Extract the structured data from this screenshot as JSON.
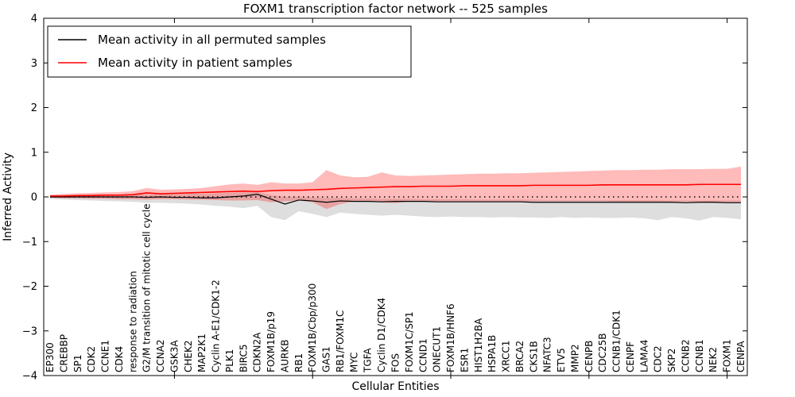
{
  "chart_data": {
    "type": "line",
    "title": "FOXM1 transcription factor network -- 525 samples",
    "xlabel": "Cellular Entities",
    "ylabel": "Inferred Activity",
    "ylim": [
      -4,
      4
    ],
    "yticks": [
      -4,
      -3,
      -2,
      -1,
      0,
      1,
      2,
      3,
      4
    ],
    "xtick_values": [
      10,
      20,
      30,
      40,
      50
    ],
    "grid": false,
    "zero_line": {
      "y": 0,
      "style": "dotted",
      "color": "#000000"
    },
    "legend": {
      "position": "upper-left",
      "border_color": "#000000",
      "background": "#ffffff"
    },
    "colors": {
      "permuted_line": "#000000",
      "patient_line": "#ff0000",
      "permuted_band": "#b0b0b0",
      "patient_band": "#ff0000",
      "axis": "#000000",
      "background": "#ffffff"
    },
    "categories": [
      "EP300",
      "CREBBP",
      "SP1",
      "CDK2",
      "CCNE1",
      "CDK4",
      "response to radiation",
      "G2/M transition of mitotic cell cycle",
      "CCNA2",
      "GSK3A",
      "CHEK2",
      "MAP2K1",
      "Cyclin A-E1/CDK1-2",
      "PLK1",
      "BIRC5",
      "CDKN2A",
      "FOXM1B/p19",
      "AURKB",
      "RB1",
      "FOXM1B/Cbp/p300",
      "GAS1",
      "RB1/FOXM1C",
      "MYC",
      "TGFA",
      "Cyclin D1/CDK4",
      "FOS",
      "FOXM1C/SP1",
      "CCND1",
      "ONECUT1",
      "FOXM1B/HNF6",
      "ESR1",
      "HIST1H2BA",
      "HSPA1B",
      "XRCC1",
      "BRCA2",
      "CKS1B",
      "NFATC3",
      "ETV5",
      "MMP2",
      "CENPB",
      "CDC25B",
      "CCNB1/CDK1",
      "CENPF",
      "LAMA4",
      "CDC2",
      "SKP2",
      "CCNB2",
      "CCNB1",
      "NEK2",
      "FOXM1",
      "CENPA"
    ],
    "series": [
      {
        "name": "Mean activity in all permuted samples",
        "color": "#000000",
        "values": [
          0.0,
          0.0,
          0.0,
          0.0,
          0.0,
          0.0,
          0.0,
          -0.01,
          0.0,
          -0.01,
          -0.01,
          -0.02,
          -0.02,
          0.0,
          0.02,
          0.06,
          -0.05,
          -0.16,
          -0.07,
          -0.09,
          -0.12,
          -0.09,
          -0.1,
          -0.1,
          -0.11,
          -0.1,
          -0.1,
          -0.1,
          -0.11,
          -0.11,
          -0.11,
          -0.11,
          -0.11,
          -0.11,
          -0.11,
          -0.12,
          -0.12,
          -0.12,
          -0.12,
          -0.12,
          -0.12,
          -0.12,
          -0.12,
          -0.12,
          -0.12,
          -0.12,
          -0.13,
          -0.12,
          -0.12,
          -0.13,
          -0.13
        ],
        "band_upper": [
          0.03,
          0.04,
          0.04,
          0.05,
          0.05,
          0.05,
          0.06,
          0.06,
          0.06,
          0.06,
          0.07,
          0.07,
          0.08,
          0.09,
          0.1,
          0.11,
          0.04,
          0.0,
          0.0,
          -0.01,
          -0.02,
          -0.02,
          -0.03,
          -0.03,
          -0.04,
          -0.04,
          -0.04,
          -0.05,
          -0.05,
          -0.05,
          -0.05,
          -0.06,
          -0.06,
          -0.06,
          -0.06,
          -0.06,
          -0.07,
          -0.07,
          -0.07,
          -0.07,
          -0.07,
          -0.07,
          -0.07,
          -0.07,
          -0.07,
          -0.08,
          -0.08,
          -0.08,
          -0.08,
          -0.08,
          -0.08
        ],
        "band_lower": [
          -0.04,
          -0.06,
          -0.07,
          -0.08,
          -0.09,
          -0.1,
          -0.11,
          -0.13,
          -0.13,
          -0.14,
          -0.15,
          -0.17,
          -0.2,
          -0.22,
          -0.25,
          -0.2,
          -0.45,
          -0.52,
          -0.32,
          -0.38,
          -0.45,
          -0.35,
          -0.38,
          -0.4,
          -0.42,
          -0.4,
          -0.42,
          -0.44,
          -0.45,
          -0.44,
          -0.45,
          -0.45,
          -0.46,
          -0.45,
          -0.46,
          -0.46,
          -0.47,
          -0.45,
          -0.47,
          -0.46,
          -0.47,
          -0.47,
          -0.46,
          -0.48,
          -0.52,
          -0.45,
          -0.48,
          -0.53,
          -0.45,
          -0.47,
          -0.5
        ]
      },
      {
        "name": "Mean activity in patient samples",
        "color": "#ff0000",
        "values": [
          0.02,
          0.02,
          0.03,
          0.03,
          0.04,
          0.04,
          0.05,
          0.09,
          0.07,
          0.08,
          0.09,
          0.1,
          0.11,
          0.12,
          0.13,
          0.12,
          0.14,
          0.15,
          0.15,
          0.16,
          0.17,
          0.19,
          0.2,
          0.21,
          0.22,
          0.23,
          0.23,
          0.24,
          0.24,
          0.24,
          0.25,
          0.25,
          0.25,
          0.25,
          0.25,
          0.26,
          0.26,
          0.26,
          0.26,
          0.26,
          0.27,
          0.27,
          0.27,
          0.27,
          0.27,
          0.27,
          0.27,
          0.28,
          0.28,
          0.28,
          0.28
        ],
        "band_upper": [
          0.05,
          0.07,
          0.08,
          0.09,
          0.1,
          0.11,
          0.13,
          0.2,
          0.16,
          0.17,
          0.18,
          0.2,
          0.24,
          0.28,
          0.3,
          0.27,
          0.33,
          0.3,
          0.3,
          0.33,
          0.6,
          0.48,
          0.44,
          0.45,
          0.55,
          0.48,
          0.47,
          0.48,
          0.49,
          0.5,
          0.51,
          0.52,
          0.52,
          0.53,
          0.53,
          0.54,
          0.55,
          0.56,
          0.57,
          0.58,
          0.59,
          0.6,
          0.6,
          0.61,
          0.61,
          0.62,
          0.62,
          0.62,
          0.63,
          0.63,
          0.68
        ],
        "band_lower": [
          -0.02,
          -0.03,
          -0.03,
          -0.04,
          -0.04,
          -0.05,
          -0.05,
          -0.06,
          -0.05,
          -0.05,
          -0.06,
          -0.06,
          -0.07,
          -0.08,
          -0.08,
          -0.07,
          -0.12,
          -0.1,
          -0.08,
          -0.12,
          -0.27,
          -0.16,
          -0.1,
          -0.1,
          -0.12,
          -0.14,
          -0.1,
          -0.1,
          -0.1,
          -0.1,
          -0.1,
          -0.1,
          -0.1,
          -0.1,
          -0.1,
          -0.1,
          -0.1,
          -0.1,
          -0.1,
          -0.1,
          -0.1,
          -0.11,
          -0.11,
          -0.11,
          -0.11,
          -0.11,
          -0.11,
          -0.11,
          -0.12,
          -0.12,
          -0.12
        ]
      }
    ]
  }
}
